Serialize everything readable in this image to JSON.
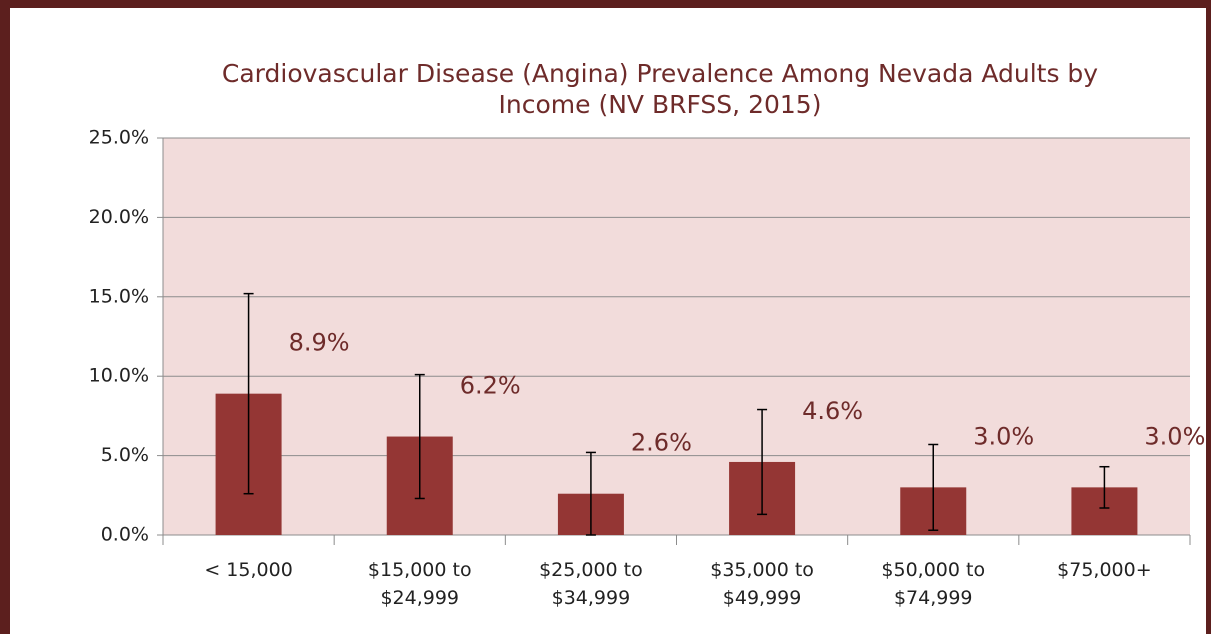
{
  "chart_data": {
    "type": "bar",
    "title": [
      "Cardiovascular Disease (Angina) Prevalence Among Nevada Adults by",
      "Income (NV BRFSS, 2015)"
    ],
    "categories": [
      "< 15,000",
      "$15,000 to $24,999",
      "$25,000 to $34,999",
      "$35,000 to $49,999",
      "$50,000 to $74,999",
      "$75,000+"
    ],
    "values": [
      8.9,
      6.2,
      2.6,
      4.6,
      3.0,
      3.0
    ],
    "value_labels": [
      "8.9%",
      "6.2%",
      "2.6%",
      "4.6%",
      "3.0%",
      "3.0%"
    ],
    "errors": [
      6.3,
      3.9,
      2.6,
      3.3,
      2.7,
      1.3
    ],
    "color": "#943634",
    "ylim": [
      0,
      25
    ],
    "yticks": [
      {
        "value": 0,
        "label": "0.0%"
      },
      {
        "value": 5,
        "label": "5.0%"
      },
      {
        "value": 10,
        "label": "10.0%"
      },
      {
        "value": 15,
        "label": "15.0%"
      },
      {
        "value": 20,
        "label": "20.0%"
      },
      {
        "value": 25,
        "label": "25.0%"
      }
    ],
    "grid": true
  }
}
